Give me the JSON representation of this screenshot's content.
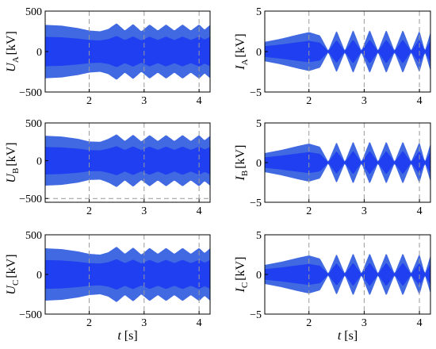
{
  "colors": {
    "envelope": "#4169e1",
    "inner": "#1f3ff0",
    "grid": "#9a9a9a",
    "axis": "#000000"
  },
  "chart_data": [
    {
      "type": "area",
      "ylabel_main": "U",
      "ylabel_sub": "A",
      "ylabel_unit": "[kV]",
      "xlabel_main": "",
      "xlabel_unit": "",
      "xlim": [
        1.2,
        4.2
      ],
      "ylim": [
        -500,
        500
      ],
      "xticks": [
        2,
        3,
        4
      ],
      "yticks": [
        500,
        0,
        -500
      ],
      "xticklabels": [
        "2",
        "3",
        "4"
      ],
      "yticklabels": [
        "500",
        "0",
        "−500"
      ],
      "grid": "x-dashed",
      "hlines": [],
      "envelope": {
        "t": [
          1.2,
          1.5,
          1.8,
          2.0,
          2.2,
          2.35,
          2.5,
          2.65,
          2.8,
          2.95,
          3.1,
          3.25,
          3.4,
          3.55,
          3.7,
          3.85,
          4.0,
          4.1,
          4.2
        ],
        "max": [
          330,
          320,
          290,
          260,
          250,
          280,
          350,
          260,
          340,
          250,
          335,
          260,
          335,
          260,
          335,
          260,
          335,
          270,
          330
        ]
      },
      "inner_ratio": 0.55
    },
    {
      "type": "area",
      "ylabel_main": "I",
      "ylabel_sub": "A",
      "ylabel_unit": "[kV]",
      "xlabel_main": "",
      "xlabel_unit": "",
      "xlim": [
        1.2,
        4.2
      ],
      "ylim": [
        -5,
        5
      ],
      "xticks": [
        2,
        3,
        4
      ],
      "yticks": [
        5,
        0,
        -5
      ],
      "xticklabels": [
        "2",
        "3",
        "4"
      ],
      "yticklabels": [
        "5",
        "0",
        "−5"
      ],
      "grid": "x-dashed",
      "hlines": [],
      "envelope": {
        "t": [
          1.2,
          1.5,
          1.8,
          2.0,
          2.2,
          2.35,
          2.5,
          2.65,
          2.8,
          2.95,
          3.1,
          3.25,
          3.4,
          3.55,
          3.7,
          3.85,
          4.0,
          4.1,
          4.2
        ],
        "max": [
          1.2,
          1.6,
          2.1,
          2.4,
          2.0,
          0.1,
          2.6,
          0.1,
          2.7,
          0.1,
          2.7,
          0.1,
          2.7,
          0.1,
          2.7,
          0.1,
          2.6,
          0.1,
          2.4
        ]
      },
      "inner_ratio": 0.55
    },
    {
      "type": "area",
      "ylabel_main": "U",
      "ylabel_sub": "B",
      "ylabel_unit": "[kV]",
      "xlabel_main": "",
      "xlabel_unit": "",
      "xlim": [
        1.2,
        4.2
      ],
      "ylim": [
        -550,
        500
      ],
      "xticks": [
        2,
        3,
        4
      ],
      "yticks": [
        500,
        0,
        -500
      ],
      "xticklabels": [
        "2",
        "3",
        "4"
      ],
      "yticklabels": [
        "500",
        "0",
        "−500"
      ],
      "grid": "x-dashed",
      "hlines": [
        -500
      ],
      "envelope": {
        "t": [
          1.2,
          1.5,
          1.8,
          2.0,
          2.2,
          2.35,
          2.5,
          2.65,
          2.8,
          2.95,
          3.1,
          3.25,
          3.4,
          3.55,
          3.7,
          3.85,
          4.0,
          4.1,
          4.2
        ],
        "max": [
          330,
          320,
          290,
          255,
          250,
          290,
          350,
          260,
          345,
          255,
          340,
          260,
          340,
          260,
          340,
          260,
          340,
          270,
          330
        ]
      },
      "inner_ratio": 0.55
    },
    {
      "type": "area",
      "ylabel_main": "I",
      "ylabel_sub": "B",
      "ylabel_unit": "[kV]",
      "xlabel_main": "",
      "xlabel_unit": "",
      "xlim": [
        1.2,
        4.2
      ],
      "ylim": [
        -5,
        5
      ],
      "xticks": [
        2,
        3,
        4
      ],
      "yticks": [
        5,
        0,
        -5
      ],
      "xticklabels": [
        "2",
        "3",
        "4"
      ],
      "yticklabels": [
        "5",
        "0",
        "−5"
      ],
      "grid": "x-dashed",
      "hlines": [],
      "envelope": {
        "t": [
          1.2,
          1.5,
          1.8,
          2.0,
          2.2,
          2.35,
          2.5,
          2.65,
          2.8,
          2.95,
          3.1,
          3.25,
          3.4,
          3.55,
          3.7,
          3.85,
          4.0,
          4.1,
          4.2
        ],
        "max": [
          1.2,
          1.6,
          2.1,
          2.4,
          2.0,
          0.1,
          2.6,
          0.1,
          2.7,
          0.1,
          2.7,
          0.1,
          2.7,
          0.1,
          2.7,
          0.1,
          2.6,
          0.1,
          2.4
        ]
      },
      "inner_ratio": 0.55
    },
    {
      "type": "area",
      "ylabel_main": "U",
      "ylabel_sub": "C",
      "ylabel_unit": "[kV]",
      "xlabel_main": "t",
      "xlabel_unit": "[s]",
      "xlim": [
        1.2,
        4.2
      ],
      "ylim": [
        -500,
        500
      ],
      "xticks": [
        2,
        3,
        4
      ],
      "yticks": [
        500,
        0,
        -500
      ],
      "xticklabels": [
        "2",
        "3",
        "4"
      ],
      "yticklabels": [
        "500",
        "0",
        "−500"
      ],
      "grid": "x-dashed",
      "hlines": [],
      "envelope": {
        "t": [
          1.2,
          1.5,
          1.8,
          2.0,
          2.2,
          2.35,
          2.5,
          2.65,
          2.8,
          2.95,
          3.1,
          3.25,
          3.4,
          3.55,
          3.7,
          3.85,
          4.0,
          4.1,
          4.2
        ],
        "max": [
          330,
          320,
          290,
          260,
          250,
          280,
          350,
          260,
          340,
          250,
          335,
          260,
          335,
          260,
          335,
          260,
          335,
          270,
          330
        ]
      },
      "inner_ratio": 0.55
    },
    {
      "type": "area",
      "ylabel_main": "I",
      "ylabel_sub": "C",
      "ylabel_unit": "[kV]",
      "xlabel_main": "t",
      "xlabel_unit": "[s]",
      "xlim": [
        1.2,
        4.2
      ],
      "ylim": [
        -5,
        5
      ],
      "xticks": [
        2,
        3,
        4
      ],
      "yticks": [
        5,
        0,
        -5
      ],
      "xticklabels": [
        "2",
        "3",
        "4"
      ],
      "yticklabels": [
        "5",
        "0",
        "−5"
      ],
      "grid": "x-dashed",
      "hlines": [],
      "envelope": {
        "t": [
          1.2,
          1.5,
          1.8,
          2.0,
          2.2,
          2.35,
          2.5,
          2.65,
          2.8,
          2.95,
          3.1,
          3.25,
          3.4,
          3.55,
          3.7,
          3.85,
          4.0,
          4.1,
          4.2
        ],
        "max": [
          1.2,
          1.6,
          2.1,
          2.4,
          2.0,
          0.1,
          2.6,
          0.1,
          2.7,
          0.1,
          2.7,
          0.1,
          2.7,
          0.1,
          2.7,
          0.1,
          2.6,
          0.1,
          2.4
        ]
      },
      "inner_ratio": 0.55
    }
  ]
}
